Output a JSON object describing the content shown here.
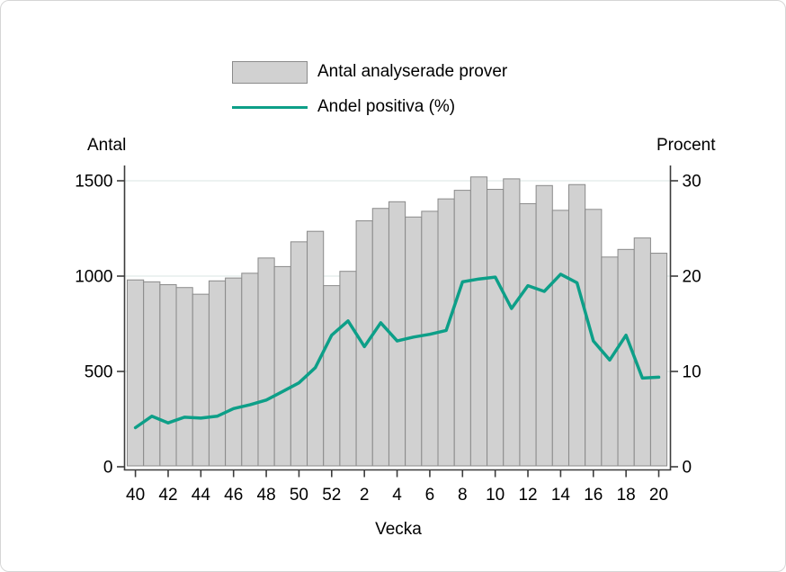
{
  "figure": {
    "background": "#ffffff",
    "border_color": "#d6d6d6"
  },
  "legend": {
    "position": "top-center",
    "items": [
      {
        "label": "Antal analyserade prover",
        "swatch": "gray-bar"
      },
      {
        "label": "Andel positiva (%)",
        "swatch": "teal-line"
      }
    ]
  },
  "axes": {
    "left_title": "Antal",
    "right_title": "Procent",
    "x_title": "Vecka"
  },
  "colors": {
    "bar_fill": "#d1d1d1",
    "bar_border": "#8a8a8a",
    "line": "#0d9f88",
    "grid": "#e9f1ef",
    "axis": "#3c3c3c",
    "text": "#000000"
  },
  "chart_data": {
    "type": "combo",
    "title": "",
    "xlabel": "Vecka",
    "ylabel_left": "Antal",
    "ylabel_right": "Procent",
    "grid": "horizontal-light",
    "legend_position": "top-center",
    "categories": [
      "40",
      "41",
      "42",
      "43",
      "44",
      "45",
      "46",
      "47",
      "48",
      "49",
      "50",
      "51",
      "52",
      "1",
      "2",
      "3",
      "4",
      "5",
      "6",
      "7",
      "8",
      "9",
      "10",
      "11",
      "12",
      "13",
      "14",
      "15",
      "16",
      "17",
      "18",
      "19",
      "20"
    ],
    "xticks_shown": [
      "40",
      "42",
      "44",
      "46",
      "48",
      "50",
      "52",
      "2",
      "4",
      "6",
      "8",
      "10",
      "12",
      "14",
      "16",
      "18",
      "20"
    ],
    "yticks_left": [
      0,
      500,
      1000,
      1500
    ],
    "yticks_right": [
      0,
      10,
      20,
      30
    ],
    "ylim_left": [
      0,
      1580
    ],
    "ylim_right": [
      0,
      31.6
    ],
    "series": [
      {
        "name": "Antal analyserade prover",
        "type": "bar",
        "axis": "left",
        "values": [
          980,
          970,
          955,
          940,
          905,
          975,
          990,
          1015,
          1095,
          1050,
          1180,
          1235,
          950,
          1025,
          1290,
          1355,
          1390,
          1310,
          1340,
          1405,
          1450,
          1520,
          1455,
          1510,
          1380,
          1475,
          1345,
          1480,
          1350,
          1100,
          1140,
          1200,
          1120
        ]
      },
      {
        "name": "Andel positiva (%)",
        "type": "line",
        "axis": "right",
        "values": [
          4.1,
          5.3,
          4.6,
          5.2,
          5.1,
          5.3,
          6.1,
          6.5,
          7.0,
          7.9,
          8.8,
          10.4,
          13.8,
          15.3,
          12.6,
          15.1,
          13.2,
          13.6,
          13.9,
          14.3,
          19.4,
          19.7,
          19.9,
          16.6,
          19.0,
          18.4,
          20.2,
          19.3,
          13.2,
          11.2,
          13.8,
          9.3,
          9.4
        ]
      }
    ]
  }
}
